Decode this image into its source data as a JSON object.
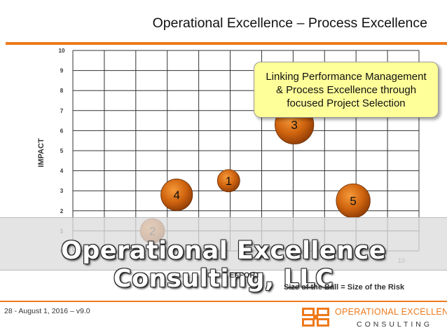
{
  "slide": {
    "title": "Operational Excellence – Process Excellence",
    "callout": "Linking Performance Management & Process Excellence through focused Project Selection",
    "banner": "Operational Excellence Consulting, LLC",
    "size_note": "Size of the Ball = Size of the Risk",
    "footer": "28 - August 1, 2016 – v9.0",
    "logo": {
      "line1": "OPERATIONAL EXCELLENCE",
      "line2": "CONSULTING"
    },
    "colors": {
      "accent": "#ee7a1c",
      "callout_bg": "#ffff9a",
      "ball": "#c95a0c"
    }
  },
  "chart_data": {
    "type": "scatter",
    "title": "",
    "xlabel": "EFFORT",
    "ylabel": "IMPACT",
    "xlim": [
      0,
      10
    ],
    "ylim": [
      0,
      10
    ],
    "y_ticks": [
      "0",
      "1",
      "2",
      "3",
      "4",
      "5",
      "6",
      "7",
      "8",
      "9",
      "10"
    ],
    "x_ticks_visible": [
      "10"
    ],
    "grid": true,
    "points": [
      {
        "label": "1",
        "x": 4.5,
        "y": 3.5,
        "size": 1
      },
      {
        "label": "2",
        "x": 2.3,
        "y": 1.0,
        "size": 1.2
      },
      {
        "label": "3",
        "x": 6.4,
        "y": 6.3,
        "size": 3
      },
      {
        "label": "4",
        "x": 3.0,
        "y": 2.8,
        "size": 2
      },
      {
        "label": "5",
        "x": 8.1,
        "y": 2.5,
        "size": 2.3
      }
    ]
  }
}
